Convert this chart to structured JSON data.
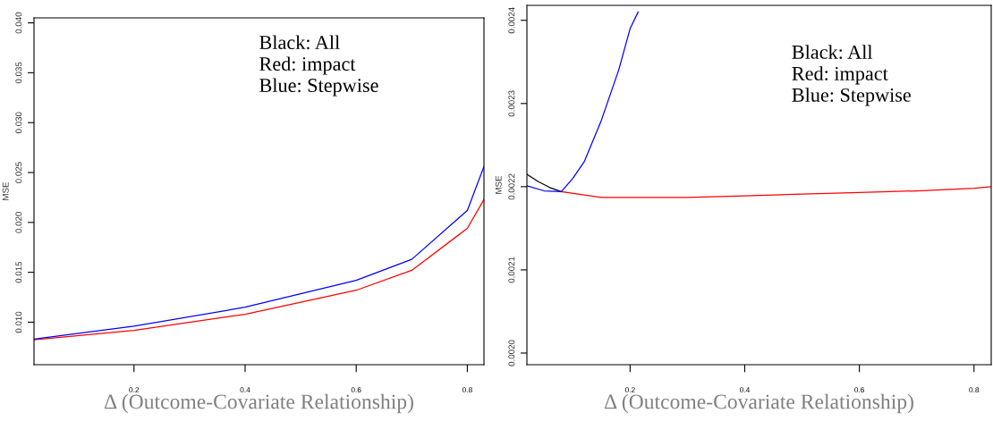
{
  "chart_data": [
    {
      "type": "line",
      "xlabel": "Δ (Outcome-Covariate Relationship)",
      "ylabel": "MSE",
      "annotations": [
        "Black: All\nRed: impact\nBlue: Stepwise"
      ],
      "xlim": [
        0.02,
        0.83
      ],
      "xticks": [
        0.2,
        0.4,
        0.6,
        0.8
      ],
      "ylim": [
        0.00574,
        0.0405
      ],
      "yticks": [
        {
          "value": 0.01,
          "label": "0.010"
        },
        {
          "value": 0.015,
          "label": "0.015"
        },
        {
          "value": 0.02,
          "label": "0.020"
        },
        {
          "value": 0.025,
          "label": "0.025"
        },
        {
          "value": 0.03,
          "label": "0.030"
        },
        {
          "value": 0.035,
          "label": "0.035"
        },
        {
          "value": 0.04,
          "label": "0.040"
        }
      ],
      "grid": false,
      "legend": false,
      "series": [
        {
          "color": "#ff0000",
          "x": [
            0.02,
            0.2,
            0.4,
            0.6,
            0.7,
            0.8,
            0.83
          ],
          "values": [
            0.00824,
            0.00917,
            0.0108,
            0.0132,
            0.0152,
            0.0194,
            0.0223
          ]
        },
        {
          "color": "#0000ff",
          "x": [
            0.02,
            0.2,
            0.4,
            0.6,
            0.7,
            0.8,
            0.83
          ],
          "values": [
            0.0083,
            0.0096,
            0.0115,
            0.0142,
            0.0163,
            0.0212,
            0.0256
          ]
        }
      ]
    },
    {
      "type": "line",
      "xlabel": "Δ (Outcome-Covariate Relationship)",
      "ylabel": "MSE",
      "annotations": [
        "Black: All\nRed: impact\nBlue: Stepwise"
      ],
      "xlim": [
        0.02,
        0.83
      ],
      "xticks": [
        0.2,
        0.4,
        0.6,
        0.8
      ],
      "ylim": [
        0.001986,
        0.002418
      ],
      "yticks": [
        {
          "value": 0.002,
          "label": "0.0020"
        },
        {
          "value": 0.0021,
          "label": "0.0021"
        },
        {
          "value": 0.0022,
          "label": "0.0022"
        },
        {
          "value": 0.0023,
          "label": "0.0023"
        },
        {
          "value": 0.0024,
          "label": "0.0024"
        }
      ],
      "grid": false,
      "legend": false,
      "series": [
        {
          "color": "#000000",
          "x": [
            0.02,
            0.04,
            0.06,
            0.08
          ],
          "values": [
            0.002215,
            0.002206,
            0.002199,
            0.002194
          ]
        },
        {
          "color": "#ff0000",
          "x": [
            0.08,
            0.12,
            0.15,
            0.2,
            0.3,
            0.4,
            0.5,
            0.6,
            0.7,
            0.8,
            0.83
          ],
          "values": [
            0.002194,
            0.00219,
            0.002187,
            0.002187,
            0.002187,
            0.002189,
            0.002191,
            0.002193,
            0.002195,
            0.002198,
            0.0022
          ]
        },
        {
          "color": "#0000ff",
          "x": [
            0.02,
            0.05,
            0.08,
            0.1,
            0.12,
            0.15,
            0.18,
            0.2,
            0.214
          ],
          "values": [
            0.002201,
            0.002195,
            0.002194,
            0.00221,
            0.00223,
            0.00228,
            0.00234,
            0.00239,
            0.00241
          ]
        }
      ]
    }
  ]
}
